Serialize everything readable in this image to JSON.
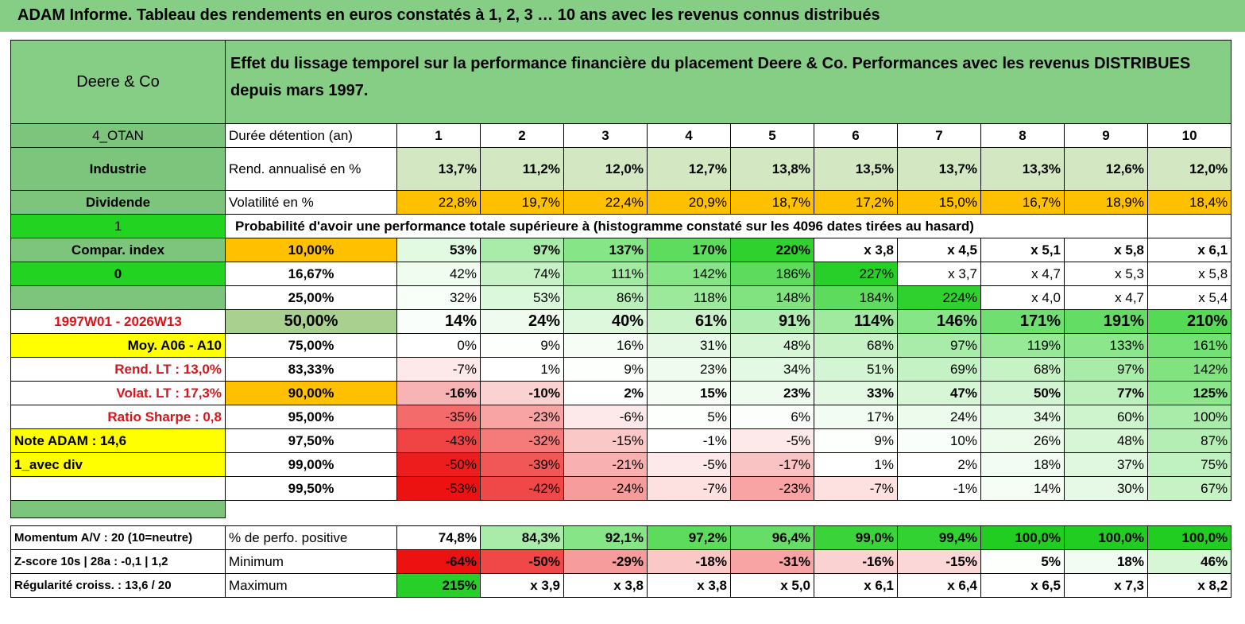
{
  "title": "ADAM Informe. Tableau des rendements en euros constatés à 1, 2, 3 … 10 ans avec les revenus connus distribués",
  "company": "Deere & Co",
  "description": "Effet du lissage temporel sur la performance financière du placement Deere & Co. Performances avec les revenus DISTRIBUES depuis mars 1997.",
  "left_labels": {
    "code": "4_OTAN",
    "sector": "Industrie",
    "type": "Dividende",
    "flag1": "1",
    "compar": "Compar. index",
    "flag0": "0",
    "period": "1997W01 - 2026W13",
    "moy": "Moy. A06 - A10",
    "rend_lt": "Rend. LT :   13,0%",
    "volat_lt": "Volat. LT :   17,3%",
    "sharpe": "Ratio Sharpe :    0,8",
    "note": "Note ADAM : 14,6",
    "avec_div": "1_avec div",
    "momentum": "Momentum A/V : 20 (10=neutre)",
    "zscore": "Z-score 10s | 28a : -0,1 | 1,2",
    "regularite": "Régularité croiss. : 13,6 / 20"
  },
  "duration": {
    "label": "Durée détention (an)",
    "values": [
      "1",
      "2",
      "3",
      "4",
      "5",
      "6",
      "7",
      "8",
      "9",
      "10"
    ]
  },
  "rend": {
    "label": "Rend. annualisé en %",
    "values": [
      "13,7%",
      "11,2%",
      "12,0%",
      "12,7%",
      "13,8%",
      "13,5%",
      "13,7%",
      "13,3%",
      "12,6%",
      "12,0%"
    ]
  },
  "volat": {
    "label": "Volatilité en %",
    "values": [
      "22,8%",
      "19,7%",
      "22,4%",
      "20,9%",
      "18,7%",
      "17,2%",
      "15,0%",
      "16,7%",
      "18,9%",
      "18,4%"
    ]
  },
  "prob_title": "Probabilité d'avoir une performance totale supérieure à (histogramme constaté sur les 4096 dates tirées au hasard)",
  "prob_rows": [
    {
      "p": "10,00%",
      "values": [
        "53%",
        "97%",
        "137%",
        "170%",
        "220%",
        "x 3,8",
        "x 4,5",
        "x 5,1",
        "x 5,8",
        "x 6,1"
      ],
      "colors": [
        "#e2fae2",
        "#a9eca9",
        "#86e586",
        "#5edc5e",
        "#2fd12f",
        "#fff",
        "#fff",
        "#fff",
        "#fff",
        "#fff"
      ]
    },
    {
      "p": "16,67%",
      "values": [
        "42%",
        "74%",
        "111%",
        "142%",
        "186%",
        "227%",
        "x 3,7",
        "x 4,7",
        "x 5,3",
        "x 5,8"
      ],
      "colors": [
        "#effcef",
        "#c6f2c6",
        "#a3eaa3",
        "#86e586",
        "#5cdb5c",
        "#28cf28",
        "#fff",
        "#fff",
        "#fff",
        "#fff"
      ]
    },
    {
      "p": "25,00%",
      "values": [
        "32%",
        "53%",
        "86%",
        "118%",
        "148%",
        "184%",
        "224%",
        "x 4,0",
        "x 4,7",
        "x 5,4"
      ],
      "colors": [
        "#f8fef8",
        "#dcf8dc",
        "#b9efb9",
        "#9ce99c",
        "#80e380",
        "#5cdb5c",
        "#2ed12e",
        "#fff",
        "#fff",
        "#fff"
      ]
    },
    {
      "p": "50,00%",
      "values": [
        "14%",
        "24%",
        "40%",
        "61%",
        "91%",
        "114%",
        "146%",
        "171%",
        "191%",
        "210%"
      ],
      "colors": [
        "#fafefa",
        "#eefbee",
        "#def8de",
        "#caf3ca",
        "#b0edb0",
        "#a0eaa0",
        "#86e586",
        "#6fe06f",
        "#63dd63",
        "#55da55"
      ]
    },
    {
      "p": "75,00%",
      "values": [
        "0%",
        "9%",
        "16%",
        "31%",
        "48%",
        "68%",
        "97%",
        "119%",
        "133%",
        "161%"
      ],
      "colors": [
        "#fff",
        "#fcfffc",
        "#f5fdf5",
        "#e6f9e6",
        "#d6f6d6",
        "#c6f2c6",
        "#a9eca9",
        "#97e897",
        "#8ce68c",
        "#73e173"
      ]
    },
    {
      "p": "83,33%",
      "values": [
        "-7%",
        "1%",
        "9%",
        "23%",
        "34%",
        "51%",
        "69%",
        "68%",
        "97%",
        "142%"
      ],
      "colors": [
        "#fde9e9",
        "#fff",
        "#fcfffc",
        "#eefbee",
        "#e3f9e3",
        "#d4f5d4",
        "#c4f2c4",
        "#c6f2c6",
        "#a9eca9",
        "#80e380"
      ]
    },
    {
      "p": "90,00%",
      "values": [
        "-16%",
        "-10%",
        "2%",
        "15%",
        "23%",
        "33%",
        "47%",
        "50%",
        "77%",
        "125%"
      ],
      "colors": [
        "#f8b4b4",
        "#fbd2d2",
        "#fff",
        "#f5fdf5",
        "#eefbee",
        "#e3f9e3",
        "#d6f6d6",
        "#d4f5d4",
        "#bef0be",
        "#8ce68c"
      ]
    },
    {
      "p": "95,00%",
      "values": [
        "-35%",
        "-23%",
        "-6%",
        "5%",
        "6%",
        "17%",
        "24%",
        "34%",
        "60%",
        "100%"
      ],
      "colors": [
        "#f36b6b",
        "#f8a4a4",
        "#fde9e9",
        "#fcfffc",
        "#fbfefb",
        "#f2fcf2",
        "#edfbed",
        "#e3f9e3",
        "#cdf4cd",
        "#a9eca9"
      ]
    },
    {
      "p": "97,50%",
      "values": [
        "-43%",
        "-32%",
        "-15%",
        "-1%",
        "-5%",
        "9%",
        "10%",
        "26%",
        "48%",
        "87%"
      ],
      "colors": [
        "#f04343",
        "#f57a7a",
        "#fbc8c8",
        "#fff",
        "#fde9e9",
        "#fcfffc",
        "#fafefa",
        "#ecfbec",
        "#d6f6d6",
        "#b5eeb5"
      ]
    },
    {
      "p": "99,00%",
      "values": [
        "-50%",
        "-39%",
        "-21%",
        "-5%",
        "-17%",
        "1%",
        "2%",
        "18%",
        "37%",
        "75%"
      ],
      "colors": [
        "#ee1d1d",
        "#f25757",
        "#f9b0b0",
        "#fde9e9",
        "#fac3c3",
        "#fff",
        "#fff",
        "#f2fcf2",
        "#e0f8e0",
        "#c0f1c0"
      ]
    },
    {
      "p": "99,50%",
      "values": [
        "-53%",
        "-42%",
        "-24%",
        "-7%",
        "-23%",
        "-7%",
        "-1%",
        "14%",
        "30%",
        "67%"
      ],
      "colors": [
        "#ec1212",
        "#f04848",
        "#f79c9c",
        "#fde0e0",
        "#f8a4a4",
        "#fde0e0",
        "#fff",
        "#f5fdf5",
        "#e6f9e6",
        "#c6f2c6"
      ]
    }
  ],
  "positive": {
    "label": "% de perfo. positive",
    "values": [
      "74,8%",
      "84,3%",
      "92,1%",
      "97,2%",
      "96,4%",
      "99,0%",
      "99,4%",
      "100,0%",
      "100,0%",
      "100,0%"
    ],
    "colors": [
      "#fff",
      "#a9eca9",
      "#86e586",
      "#5cdb5c",
      "#66dd66",
      "#3ad43a",
      "#33d233",
      "#22cd22",
      "#22cd22",
      "#22cd22"
    ]
  },
  "minimum": {
    "label": "Minimum",
    "values": [
      "-64%",
      "-50%",
      "-29%",
      "-18%",
      "-31%",
      "-16%",
      "-15%",
      "5%",
      "18%",
      "46%"
    ],
    "colors": [
      "#ec1212",
      "#f04848",
      "#f79c9c",
      "#fbc8c8",
      "#f8a4a4",
      "#fbd2d2",
      "#fbd7d7",
      "#fcfffc",
      "#f2fcf2",
      "#d6f6d6"
    ]
  },
  "maximum": {
    "label": "Maximum",
    "values": [
      "215%",
      "x 3,9",
      "x 3,8",
      "x 3,8",
      "x 5,0",
      "x 6,1",
      "x 6,4",
      "x 6,5",
      "x 7,3",
      "x 8,2"
    ],
    "colors": [
      "#28cf28",
      "#fff",
      "#fff",
      "#fff",
      "#fff",
      "#fff",
      "#fff",
      "#fff",
      "#fff",
      "#fff"
    ]
  },
  "colors": {
    "header_green": "#86cd86",
    "left_green": "#7dc47d",
    "bright_green": "#22d322",
    "yellow": "#ffff00",
    "orange": "#ffc000",
    "rend_green": "#d3e8c2",
    "median_green": "#a9d08e"
  }
}
